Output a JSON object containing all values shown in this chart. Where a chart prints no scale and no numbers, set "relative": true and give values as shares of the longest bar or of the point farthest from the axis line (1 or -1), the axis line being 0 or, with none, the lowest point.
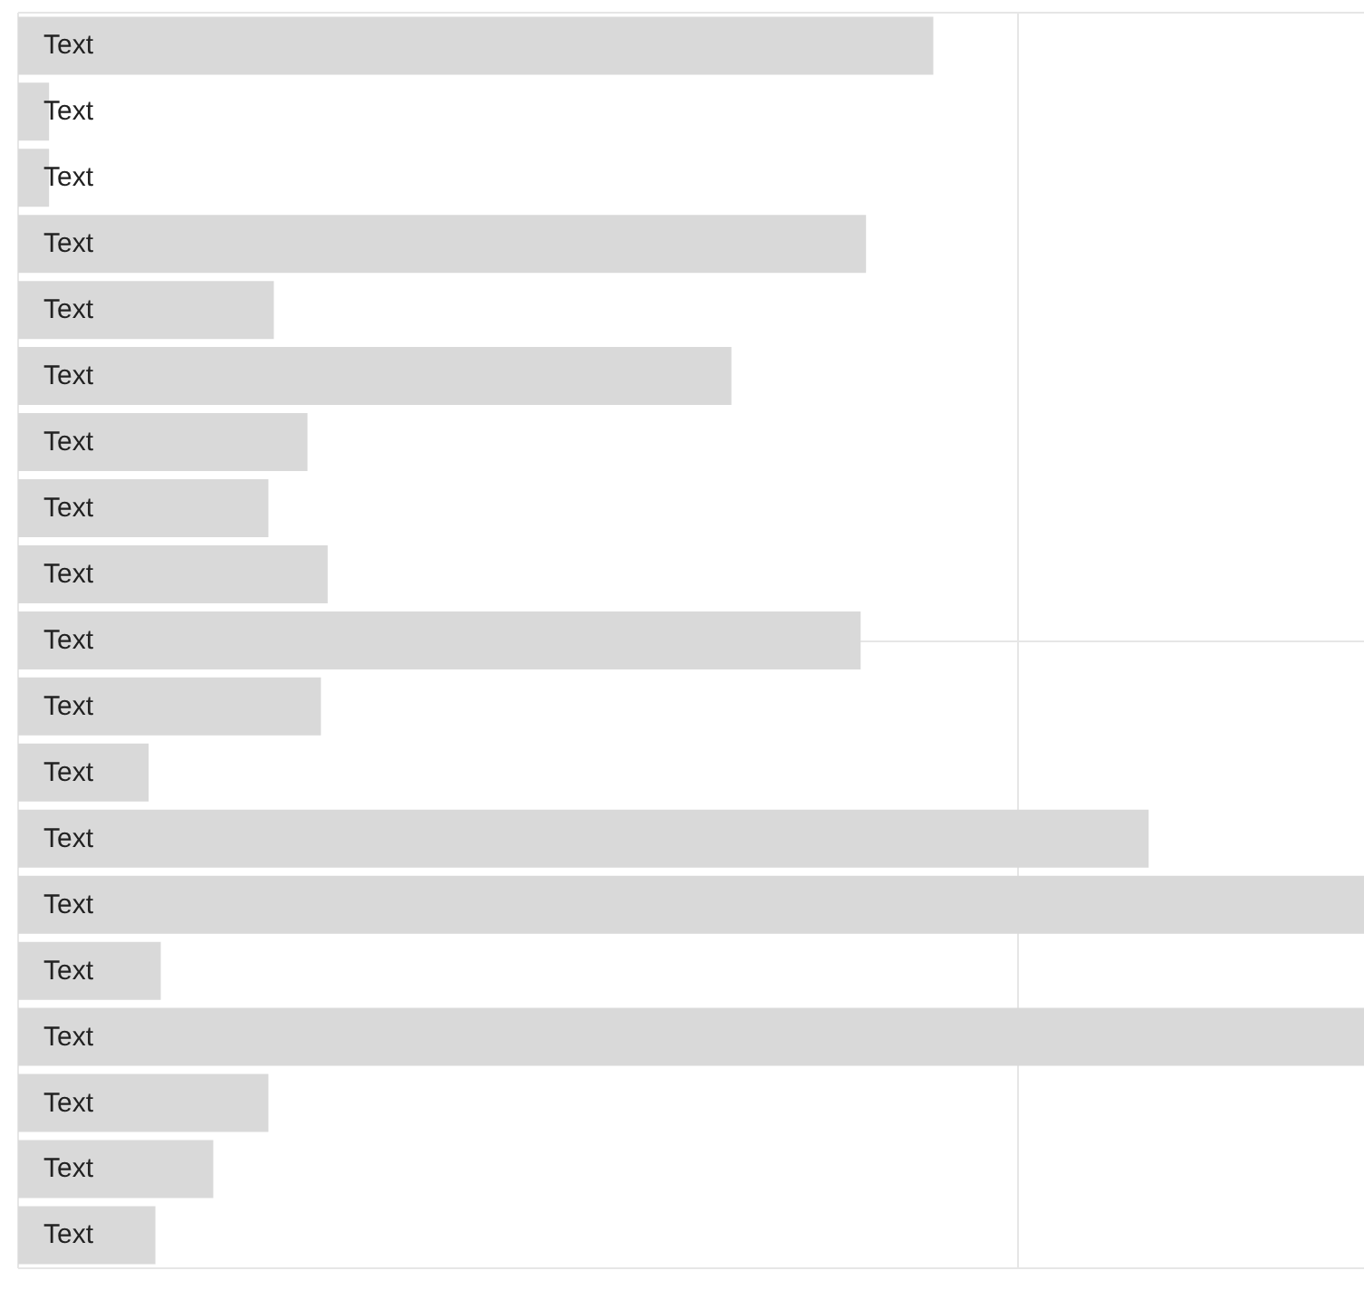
{
  "chart_data": {
    "type": "bar",
    "orientation": "horizontal",
    "relative": true,
    "grid": true,
    "color": "#d9d9d9",
    "categories": [
      "Text",
      "Text",
      "Text",
      "Text",
      "Text",
      "Text",
      "Text",
      "Text",
      "Text",
      "Text",
      "Text",
      "Text",
      "Text",
      "Text",
      "Text",
      "Text",
      "Text",
      "Text",
      "Text"
    ],
    "values": [
      0.68,
      0.023,
      0.023,
      0.63,
      0.19,
      0.53,
      0.215,
      0.186,
      0.23,
      0.626,
      0.225,
      0.097,
      0.84,
      1,
      0.106,
      1,
      0.186,
      0.145,
      0.102
    ]
  }
}
